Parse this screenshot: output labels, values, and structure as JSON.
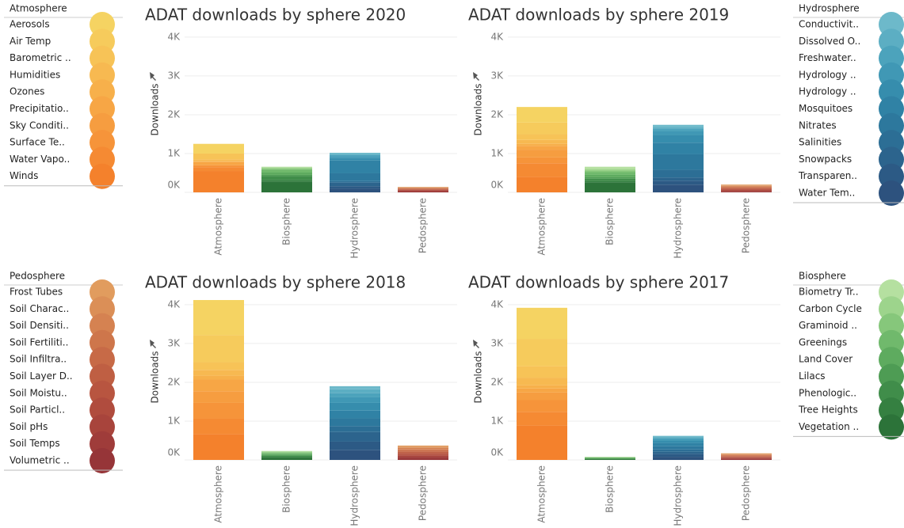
{
  "chart_data": [
    {
      "type": "bar",
      "stacked": true,
      "title": "ADAT downloads by sphere 2020",
      "y_label": "Downloads",
      "categories": [
        "Atmosphere",
        "Biosphere",
        "Hydrosphere",
        "Pedosphere"
      ],
      "segments": [
        [
          250,
          0,
          150,
          50,
          20,
          80,
          0,
          50,
          100,
          550
        ],
        [
          20,
          30,
          20,
          80,
          60,
          30,
          100,
          40,
          280
        ],
        [
          40,
          20,
          30,
          50,
          60,
          330,
          200,
          40,
          90,
          60,
          100
        ],
        [
          10,
          10,
          10,
          10,
          20,
          10,
          10,
          10,
          20,
          20,
          10
        ]
      ],
      "ylim": [
        0,
        4100
      ],
      "yticks": [
        {
          "value": 0,
          "label": "0K"
        },
        {
          "value": 1000,
          "label": "1K"
        },
        {
          "value": 2000,
          "label": "2K"
        },
        {
          "value": 3000,
          "label": "3K"
        },
        {
          "value": 4000,
          "label": "4K"
        }
      ],
      "grid": true
    },
    {
      "type": "bar",
      "stacked": true,
      "title": "ADAT downloads by sphere 2019",
      "y_label": "Downloads",
      "categories": [
        "Atmosphere",
        "Biosphere",
        "Hydrosphere",
        "Pedosphere"
      ],
      "segments": [
        [
          400,
          300,
          150,
          100,
          50,
          100,
          200,
          150,
          350,
          400
        ],
        [
          60,
          40,
          40,
          70,
          60,
          40,
          50,
          40,
          260
        ],
        [
          60,
          40,
          60,
          100,
          200,
          300,
          400,
          200,
          80,
          100,
          200
        ],
        [
          20,
          10,
          20,
          20,
          20,
          20,
          20,
          20,
          20,
          15,
          15
        ]
      ],
      "ylim": [
        0,
        4100
      ],
      "yticks": [
        {
          "value": 0,
          "label": "0K"
        },
        {
          "value": 1000,
          "label": "1K"
        },
        {
          "value": 2000,
          "label": "2K"
        },
        {
          "value": 3000,
          "label": "3K"
        },
        {
          "value": 4000,
          "label": "4K"
        }
      ],
      "grid": true
    },
    {
      "type": "bar",
      "stacked": true,
      "title": "ADAT downloads by sphere 2018",
      "y_label": "Downloads",
      "categories": [
        "Atmosphere",
        "Biosphere",
        "Hydrosphere",
        "Pedosphere"
      ],
      "segments": [
        [
          900,
          700,
          200,
          150,
          100,
          300,
          300,
          400,
          400,
          670
        ],
        [
          10,
          20,
          20,
          20,
          30,
          20,
          30,
          20,
          60
        ],
        [
          80,
          100,
          100,
          150,
          200,
          200,
          200,
          150,
          250,
          220,
          250
        ],
        [
          30,
          30,
          30,
          30,
          40,
          30,
          40,
          30,
          30,
          40,
          40
        ]
      ],
      "ylim": [
        0,
        4100
      ],
      "yticks": [
        {
          "value": 0,
          "label": "0K"
        },
        {
          "value": 1000,
          "label": "1K"
        },
        {
          "value": 2000,
          "label": "2K"
        },
        {
          "value": 3000,
          "label": "3K"
        },
        {
          "value": 4000,
          "label": "4K"
        }
      ],
      "grid": true
    },
    {
      "type": "bar",
      "stacked": true,
      "title": "ADAT downloads by sphere 2017",
      "y_label": "Downloads",
      "categories": [
        "Atmosphere",
        "Biosphere",
        "Hydrosphere",
        "Pedosphere"
      ],
      "segments": [
        [
          800,
          700,
          300,
          200,
          80,
          100,
          200,
          300,
          350,
          890
        ],
        [
          5,
          5,
          10,
          10,
          10,
          10,
          10,
          10,
          10
        ],
        [
          30,
          30,
          30,
          40,
          60,
          80,
          80,
          60,
          60,
          70,
          80
        ],
        [
          15,
          15,
          15,
          15,
          15,
          15,
          15,
          15,
          15,
          15,
          20
        ]
      ],
      "ylim": [
        0,
        4100
      ],
      "yticks": [
        {
          "value": 0,
          "label": "0K"
        },
        {
          "value": 1000,
          "label": "1K"
        },
        {
          "value": 2000,
          "label": "2K"
        },
        {
          "value": 3000,
          "label": "3K"
        },
        {
          "value": 4000,
          "label": "4K"
        }
      ],
      "grid": true
    }
  ],
  "legends": [
    {
      "title": "Atmosphere",
      "items": [
        "Aerosols",
        "Air Temp",
        "Barometric ..",
        "Humidities",
        "Ozones",
        "Precipitatio..",
        "Sky Conditi..",
        "Surface Te..",
        "Water Vapo..",
        "Winds"
      ],
      "colors": [
        "#f5d362",
        "#f6cb5c",
        "#f7c357",
        "#f7b951",
        "#f7b04b",
        "#f7a645",
        "#f69d40",
        "#f6943a",
        "#f58a33",
        "#f4812c"
      ]
    },
    {
      "title": "Hydrosphere",
      "items": [
        "Conductivit..",
        "Dissolved O..",
        "Freshwater..",
        "Hydrology ..",
        "Hydrology ..",
        "Mosquitoes",
        "Nitrates",
        "Salinities",
        "Snowpacks",
        "Transparen..",
        "Water Tem.."
      ],
      "colors": [
        "#6db9ca",
        "#5caec3",
        "#4ca3bc",
        "#4098b5",
        "#368dad",
        "#3082a5",
        "#2d789d",
        "#2c6e95",
        "#2c648d",
        "#2c5a85",
        "#2d527e"
      ]
    },
    {
      "title": "Pedosphere",
      "items": [
        "Frost Tubes",
        "Soil Charac..",
        "Soil Densiti..",
        "Soil Fertiliti..",
        "Soil Infiltra..",
        "Soil Layer D..",
        "Soil Moistu..",
        "Soil Particl..",
        "Soil pHs",
        "Soil Temps",
        "Volumetric .."
      ],
      "colors": [
        "#e19c5e",
        "#db8f57",
        "#d58251",
        "#ce764b",
        "#c76a47",
        "#bf5f43",
        "#b85540",
        "#b04c3e",
        "#a8443c",
        "#9f3c3a",
        "#963538"
      ]
    },
    {
      "title": "Biosphere",
      "items": [
        "Biometry Tr..",
        "Carbon Cycle",
        "Graminoid ..",
        "Greenings",
        "Land Cover",
        "Lilacs",
        "Phenologic..",
        "Tree Heights",
        "Vegetation .."
      ],
      "colors": [
        "#b5e0a0",
        "#9dd48c",
        "#86c77b",
        "#70b96c",
        "#5eab5f",
        "#4e9c54",
        "#408d4a",
        "#358041",
        "#2c7339"
      ]
    }
  ]
}
